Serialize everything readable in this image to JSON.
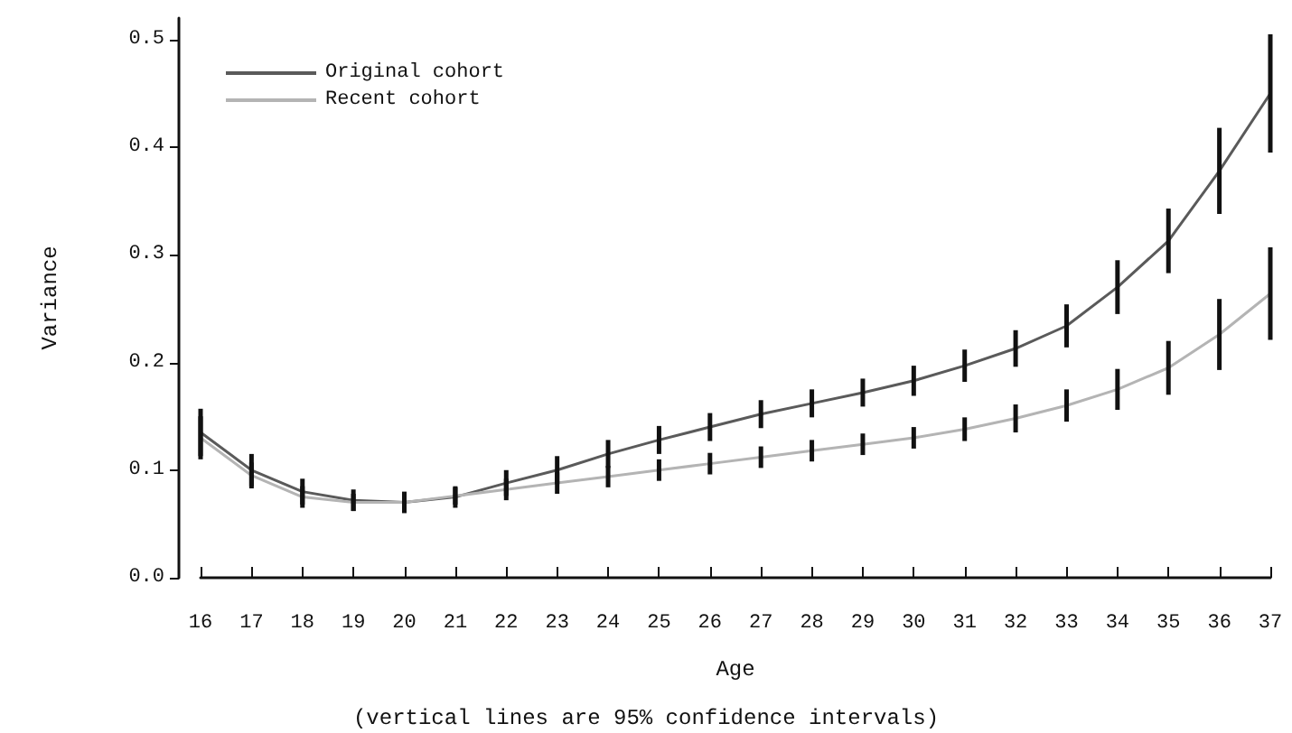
{
  "chart_data": {
    "type": "line",
    "xlabel": "Age",
    "ylabel": "Variance",
    "annotations": [
      "(vertical lines are 95% confidence intervals)"
    ],
    "x": [
      16,
      17,
      18,
      19,
      20,
      21,
      22,
      23,
      24,
      25,
      26,
      27,
      28,
      29,
      30,
      31,
      32,
      33,
      34,
      35,
      36,
      37
    ],
    "series": [
      {
        "name": "Original cohort",
        "color": "#5a5a5a",
        "values": [
          0.135,
          0.1,
          0.08,
          0.072,
          0.07,
          0.075,
          0.088,
          0.1,
          0.115,
          0.128,
          0.14,
          0.152,
          0.162,
          0.172,
          0.183,
          0.197,
          0.213,
          0.234,
          0.27,
          0.313,
          0.378,
          0.45
        ],
        "errors": [
          0.022,
          0.015,
          0.012,
          0.01,
          0.01,
          0.01,
          0.012,
          0.013,
          0.013,
          0.013,
          0.013,
          0.013,
          0.013,
          0.013,
          0.014,
          0.015,
          0.017,
          0.02,
          0.025,
          0.03,
          0.04,
          0.055
        ]
      },
      {
        "name": "Recent cohort",
        "color": "#b4b4b4",
        "values": [
          0.13,
          0.095,
          0.075,
          0.07,
          0.07,
          0.076,
          0.082,
          0.088,
          0.094,
          0.1,
          0.106,
          0.112,
          0.118,
          0.124,
          0.13,
          0.138,
          0.148,
          0.16,
          0.175,
          0.195,
          0.226,
          0.264
        ],
        "errors": [
          0.02,
          0.012,
          0.01,
          0.008,
          0.008,
          0.008,
          0.01,
          0.01,
          0.01,
          0.01,
          0.01,
          0.01,
          0.01,
          0.01,
          0.01,
          0.011,
          0.013,
          0.015,
          0.019,
          0.025,
          0.033,
          0.043
        ]
      }
    ],
    "xlim": [
      16,
      37
    ],
    "xticks": [
      16,
      17,
      18,
      19,
      20,
      21,
      22,
      23,
      24,
      25,
      26,
      27,
      28,
      29,
      30,
      31,
      32,
      33,
      34,
      35,
      36,
      37
    ],
    "ylim": [
      0,
      0.52
    ],
    "yticks": [
      {
        "value": 0,
        "label": "0.0"
      },
      {
        "value": 0.1,
        "label": "0.1"
      },
      {
        "value": 0.2,
        "label": "0.2"
      },
      {
        "value": 0.3,
        "label": "0.3"
      },
      {
        "value": 0.4,
        "label": "0.4"
      },
      {
        "value": 0.5,
        "label": "0.5"
      }
    ],
    "grid": false,
    "legend": "top left",
    "line_style": "solid"
  }
}
